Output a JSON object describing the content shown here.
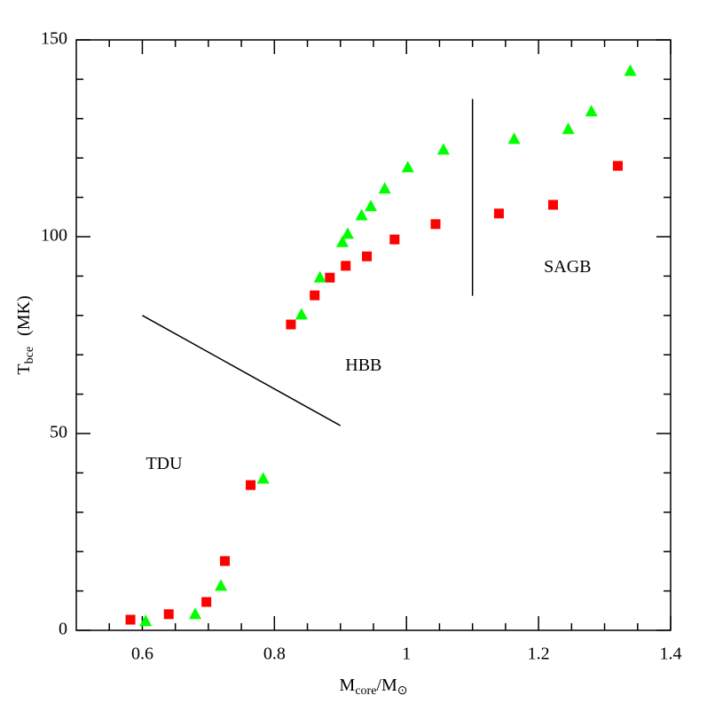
{
  "chart_data": {
    "type": "scatter",
    "xlabel": [
      "M",
      "core",
      "/M",
      "⊙"
    ],
    "ylabel": [
      "T",
      "bce",
      "(MK)"
    ],
    "xlim": [
      0.5,
      1.4
    ],
    "ylim": [
      0,
      150
    ],
    "xticks": [
      0.6,
      0.8,
      1,
      1.2,
      1.4
    ],
    "yticks": [
      0,
      50,
      100,
      150
    ],
    "xminorticks": [
      0.55,
      0.65,
      0.7,
      0.75,
      0.85,
      0.9,
      0.95,
      1.05,
      1.1,
      1.15,
      1.25,
      1.3,
      1.35
    ],
    "yminorticks": [
      10,
      20,
      30,
      40,
      60,
      70,
      80,
      90,
      110,
      120,
      130,
      140
    ],
    "series": [
      {
        "color": "#ff0000",
        "marker": "square",
        "x": [
          0.582,
          0.64,
          0.697,
          0.725,
          0.764,
          0.825,
          0.861,
          0.884,
          0.908,
          0.94,
          0.982,
          1.044,
          1.14,
          1.222,
          1.32
        ],
        "y": [
          2.7,
          4.1,
          7.2,
          17.6,
          36.9,
          77.7,
          85.1,
          89.6,
          92.6,
          95.0,
          99.3,
          103.2,
          105.9,
          108.1,
          118.0
        ]
      },
      {
        "color": "#00ff00",
        "marker": "triangle",
        "x": [
          0.605,
          0.68,
          0.719,
          0.783,
          0.841,
          0.869,
          0.903,
          0.911,
          0.932,
          0.946,
          0.967,
          1.002,
          1.056,
          1.163,
          1.245,
          1.28,
          1.339
        ],
        "y": [
          2.3,
          4.1,
          11.3,
          38.5,
          80.2,
          89.6,
          98.6,
          100.7,
          105.4,
          107.7,
          112.2,
          117.6,
          122.1,
          124.8,
          127.3,
          131.8,
          142.1
        ]
      }
    ],
    "lines": [
      {
        "x": [
          0.6,
          0.9
        ],
        "y": [
          80,
          52
        ]
      },
      {
        "x": [
          1.1,
          1.1
        ],
        "y": [
          135,
          85
        ]
      }
    ],
    "annotations": [
      {
        "text": "TDU",
        "x": 0.633,
        "y": 42
      },
      {
        "text": "HBB",
        "x": 0.935,
        "y": 67
      },
      {
        "text": "SAGB",
        "x": 1.244,
        "y": 92
      }
    ]
  }
}
